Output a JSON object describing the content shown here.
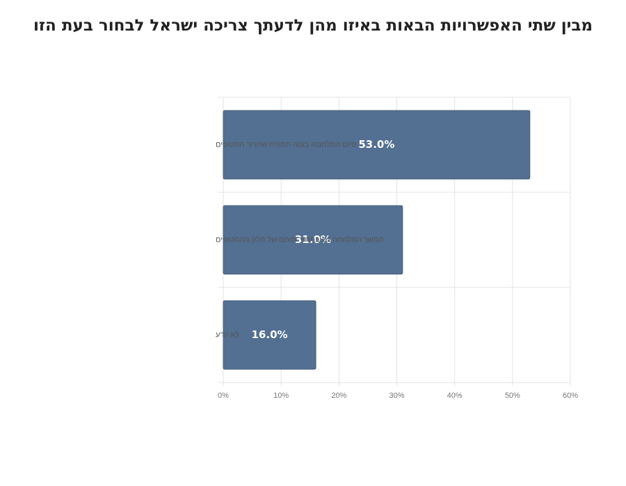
{
  "chart_data": {
    "type": "bar",
    "orientation": "horizontal",
    "title": "מבין שתי האפשרויות הבאות באיזו מהן לדעתך צריכה ישראל לבחור בעת הזו",
    "categories": [
      "סיום המלחמה בעזה תמורת שחרור החטופים",
      "המשך המלחמה גם במחיר מותם של חלק מהחטופים",
      "לא יודע"
    ],
    "values": [
      53.0,
      31.0,
      16.0
    ],
    "data_labels": [
      "53.0%",
      "31.0%",
      "16.0%"
    ],
    "xlim": [
      0,
      60
    ],
    "x_ticks": [
      "0%",
      "10%",
      "20%",
      "30%",
      "40%",
      "50%",
      "60%"
    ],
    "x_tick_values": [
      0,
      10,
      20,
      30,
      40,
      50,
      60
    ],
    "grid": true,
    "legend": "none",
    "bar_color": "#536f91",
    "label_color": "#ffffff"
  }
}
